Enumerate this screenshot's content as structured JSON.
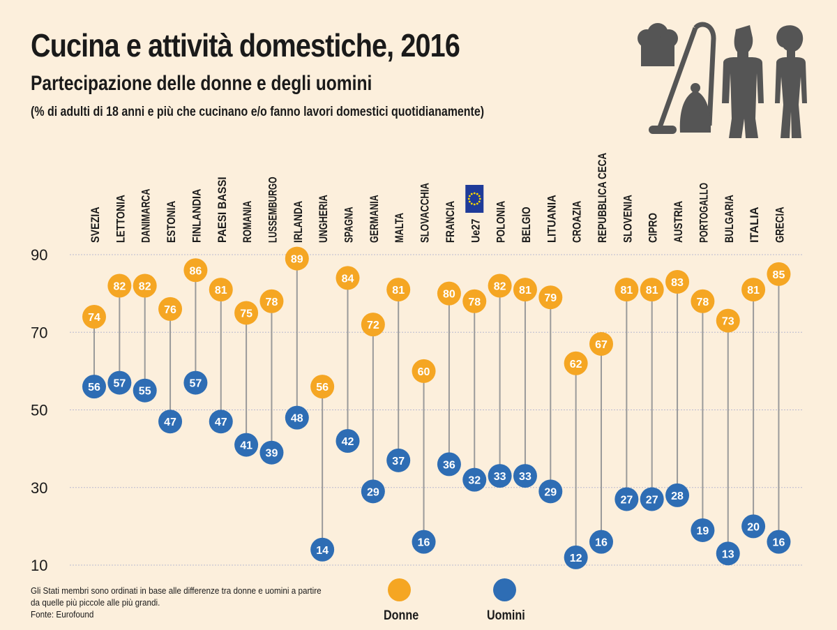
{
  "title": "Cucina e attività domestiche, 2016",
  "subtitle": "Partecipazione delle donne e degli uomini",
  "note": "(% di adulti di 18 anni e più che cucinano e/o fanno lavori domestici quotidianamente)",
  "footnote": {
    "line1": "Gli Stati membri sono ordinati in base alle differenze tra donne e uomini a partire",
    "line2": "da quelle più piccole alle più grandi.",
    "source": "Fonte: Eurofound"
  },
  "icons": [
    "chef-hat-icon",
    "vacuum-cleaner-icon",
    "man-icon",
    "woman-icon",
    "eu-flag-icon"
  ],
  "colors": {
    "background": "#fcefdc",
    "donne": "#f5a623",
    "uomini": "#2e6db4",
    "connector": "#9a9a9a",
    "grid": "#b8b8d0",
    "icon": "#555555",
    "eu_blue": "#1f3b99",
    "eu_star": "#ffd800"
  },
  "chart_data": {
    "type": "scatter",
    "categories": [
      "SVEZIA",
      "LETTONIA",
      "DANIMARCA",
      "ESTONIA",
      "FINLANDIA",
      "PAESI BASSI",
      "ROMANIA",
      "LUSSEMBURGO",
      "IRLANDA",
      "UNGHERIA",
      "SPAGNA",
      "GERMANIA",
      "MALTA",
      "SLOVACCHIA",
      "FRANCIA",
      "Ue27",
      "POLONIA",
      "BELGIO",
      "LITUANIA",
      "CROAZIA",
      "REPUBBLICA CECA",
      "SLOVENIA",
      "CIPRO",
      "AUSTRIA",
      "PORTOGALLO",
      "BULGARIA",
      "ITALIA",
      "GRECIA"
    ],
    "series": [
      {
        "name": "Donne",
        "values": [
          74,
          82,
          82,
          76,
          86,
          81,
          75,
          78,
          89,
          56,
          84,
          72,
          81,
          60,
          80,
          78,
          82,
          81,
          79,
          62,
          67,
          81,
          81,
          83,
          78,
          73,
          81,
          85
        ]
      },
      {
        "name": "Uomini",
        "values": [
          56,
          57,
          55,
          47,
          57,
          47,
          41,
          39,
          48,
          14,
          42,
          29,
          37,
          16,
          36,
          32,
          33,
          33,
          29,
          12,
          16,
          27,
          27,
          28,
          19,
          13,
          20,
          16
        ]
      }
    ],
    "y_ticks": [
      10,
      30,
      50,
      70,
      90
    ],
    "ylim": [
      10,
      90
    ],
    "grid": true,
    "legend_position": "bottom-center"
  }
}
